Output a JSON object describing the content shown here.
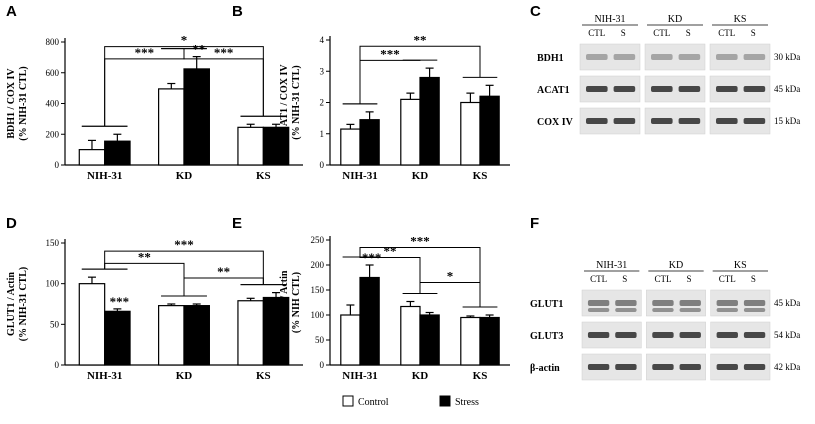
{
  "chart_data": [
    {
      "panel": "A",
      "type": "bar",
      "categories": [
        "NIH-31",
        "KD",
        "KS"
      ],
      "series": [
        {
          "name": "Control",
          "values": [
            100,
            495,
            245
          ],
          "errors": [
            60,
            35,
            20
          ]
        },
        {
          "name": "Stress",
          "values": [
            155,
            625,
            245
          ],
          "errors": [
            45,
            80,
            20
          ]
        }
      ],
      "ylabel_lines": [
        "BDH1 / COX IV",
        "(% NIH-31 CTL)"
      ],
      "ylim": [
        0,
        800
      ],
      "yticks": [
        0,
        200,
        400,
        600,
        800
      ],
      "significance": [
        {
          "label": "*",
          "span": [
            "NIH-31",
            "KS"
          ],
          "level": 770
        },
        {
          "label": "***",
          "span": [
            "NIH-31",
            "KD"
          ],
          "level": 690
        },
        {
          "label": "***",
          "span": [
            "KD",
            "KS"
          ],
          "level": 690
        },
        {
          "label": "**",
          "over": "KD-Stress",
          "level": 710
        }
      ]
    },
    {
      "panel": "B",
      "type": "bar",
      "categories": [
        "NIH-31",
        "KD",
        "KS"
      ],
      "series": [
        {
          "name": "Control",
          "values": [
            1.15,
            2.1,
            2.0
          ],
          "errors": [
            0.15,
            0.2,
            0.3
          ]
        },
        {
          "name": "Stress",
          "values": [
            1.45,
            2.8,
            2.2
          ],
          "errors": [
            0.25,
            0.3,
            0.35
          ]
        }
      ],
      "ylabel_lines": [
        "ACAT1 / COX IV",
        "(% NIH-31 CTL)"
      ],
      "ylim": [
        0,
        4
      ],
      "yticks": [
        0,
        1,
        2,
        3,
        4
      ],
      "significance": [
        {
          "label": "**",
          "span": [
            "NIH-31",
            "KS"
          ],
          "level": 3.8
        },
        {
          "label": "***",
          "span": [
            "NIH-31",
            "KD"
          ],
          "level": 3.35
        }
      ]
    },
    {
      "panel": "D",
      "type": "bar",
      "categories": [
        "NIH-31",
        "KD",
        "KS"
      ],
      "series": [
        {
          "name": "Control",
          "values": [
            100,
            73,
            79
          ],
          "errors": [
            8,
            2,
            3
          ]
        },
        {
          "name": "Stress",
          "values": [
            66,
            73,
            83
          ],
          "errors": [
            3,
            2,
            6
          ]
        }
      ],
      "ylabel_lines": [
        "GLUT1 / Actin",
        "(% NIH-31 CTL)"
      ],
      "ylim": [
        0,
        150
      ],
      "yticks": [
        0,
        50,
        100,
        150
      ],
      "significance": [
        {
          "label": "***",
          "span": [
            "NIH-31",
            "KS"
          ],
          "level": 140
        },
        {
          "label": "**",
          "span": [
            "NIH-31",
            "KD"
          ],
          "level": 125
        },
        {
          "label": "**",
          "span": [
            "KD",
            "KS"
          ],
          "level": 107
        },
        {
          "label": "***",
          "over": "NIH-31-Stress",
          "level": 72
        }
      ]
    },
    {
      "panel": "E",
      "type": "bar",
      "categories": [
        "NIH-31",
        "KD",
        "KS"
      ],
      "series": [
        {
          "name": "Control",
          "values": [
            100,
            117,
            95
          ],
          "errors": [
            20,
            10,
            3
          ]
        },
        {
          "name": "Stress",
          "values": [
            175,
            100,
            95
          ],
          "errors": [
            25,
            5,
            5
          ]
        }
      ],
      "ylabel_lines": [
        "GLUT3 / Actin",
        "(% NIH CTL)"
      ],
      "ylim": [
        0,
        250
      ],
      "yticks": [
        0,
        50,
        100,
        150,
        200,
        250
      ],
      "significance": [
        {
          "label": "***",
          "span": [
            "NIH-31",
            "KS"
          ],
          "level": 235
        },
        {
          "label": "**",
          "span": [
            "NIH-31",
            "KD"
          ],
          "level": 215
        },
        {
          "label": "*",
          "span": [
            "KD",
            "KS"
          ],
          "level": 165
        },
        {
          "label": "***",
          "over": "NIH-31-Stress",
          "level": 205
        }
      ]
    }
  ],
  "blots": [
    {
      "panel": "C",
      "groups": [
        "NIH-31",
        "KD",
        "KS"
      ],
      "subgroups": [
        "CTL",
        "S"
      ],
      "rows": [
        {
          "label": "BDH1",
          "kda": "30 kDa"
        },
        {
          "label": "ACAT1",
          "kda": "45 kDa"
        },
        {
          "label": "COX IV",
          "kda": "15 kDa"
        }
      ]
    },
    {
      "panel": "F",
      "groups": [
        "NIH-31",
        "KD",
        "KS"
      ],
      "subgroups": [
        "CTL",
        "S"
      ],
      "rows": [
        {
          "label": "GLUT1",
          "kda": "45 kDa"
        },
        {
          "label": "GLUT3",
          "kda": "54 kDa"
        },
        {
          "label": "β-actin",
          "kda": "42 kDa"
        }
      ]
    }
  ],
  "legend": {
    "items": [
      {
        "label": "Control",
        "color": "#ffffff"
      },
      {
        "label": "Stress",
        "color": "#000000"
      }
    ]
  },
  "colors": {
    "control_fill": "#ffffff",
    "stress_fill": "#000000",
    "stroke": "#000000",
    "blot_bg": "#e6e6e6",
    "band": "#2a2a2a"
  }
}
